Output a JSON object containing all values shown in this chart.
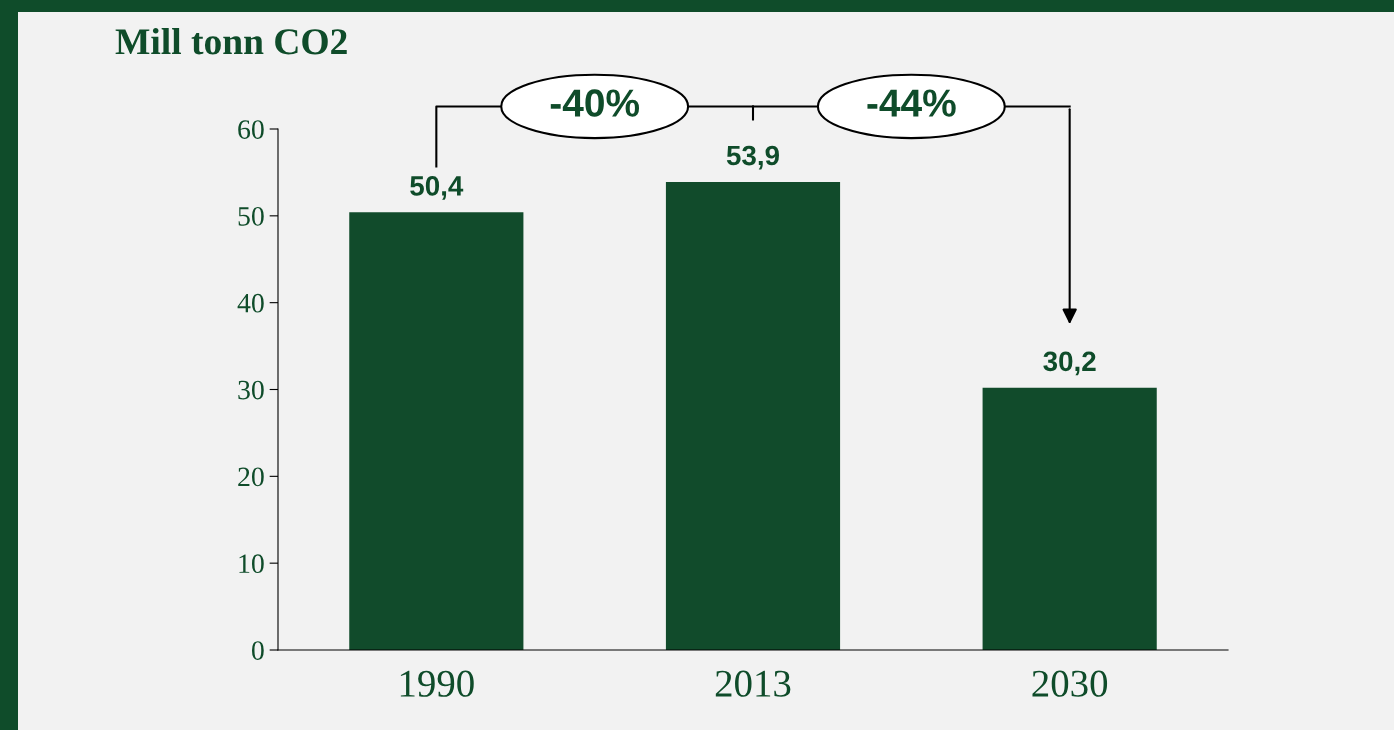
{
  "chart_data": {
    "type": "bar",
    "title": "Mill tonn CO2",
    "categories": [
      "1990",
      "2013",
      "2030"
    ],
    "values": [
      50.4,
      53.9,
      30.2
    ],
    "value_labels": [
      "50,4",
      "53,9",
      "30,2"
    ],
    "color": "#114b2b",
    "ylim": [
      0,
      60
    ],
    "yticks": [
      0,
      10,
      20,
      30,
      40,
      50,
      60
    ],
    "annotations": [
      "-40%",
      "-44%"
    ]
  }
}
